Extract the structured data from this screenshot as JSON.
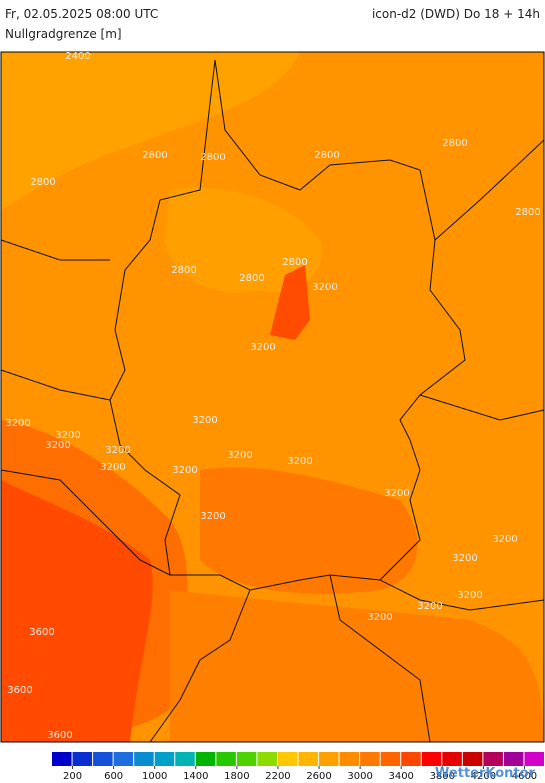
{
  "header": {
    "datetime": "Fr, 02.05.2025 08:00 UTC",
    "model": "icon-d2 (DWD) Do 18 + 14h",
    "parameter": "Nullgradgrenze [m]"
  },
  "map": {
    "contour_labels": [
      "2400",
      "2800",
      "2800",
      "2800",
      "2800",
      "2800",
      "2800",
      "2800",
      "2800",
      "2800",
      "3200",
      "3200",
      "3200",
      "3200",
      "3200",
      "3200",
      "3200",
      "3200",
      "3200",
      "3200",
      "3200",
      "3200",
      "3200",
      "3200",
      "3200",
      "3200",
      "3200",
      "3200",
      "3600",
      "3600",
      "3600"
    ]
  },
  "colorbar": {
    "lim": [
      0,
      4800
    ],
    "colors": [
      "#0000cc",
      "#0a2ed0",
      "#1450d8",
      "#1e6ee0",
      "#0a8cd0",
      "#00a0c8",
      "#00b4b4",
      "#00b400",
      "#28c800",
      "#50d200",
      "#8cdc00",
      "#ffc800",
      "#ffb400",
      "#ffa000",
      "#ff8c00",
      "#ff7800",
      "#ff6400",
      "#ff4600",
      "#ff0000",
      "#e60000",
      "#c80000",
      "#b4005a",
      "#a00096",
      "#d200c8"
    ],
    "ticks": [
      200,
      600,
      1000,
      1400,
      1800,
      2200,
      2600,
      3000,
      3400,
      3800,
      4200,
      4600
    ]
  },
  "watermark": "WetterKontor"
}
